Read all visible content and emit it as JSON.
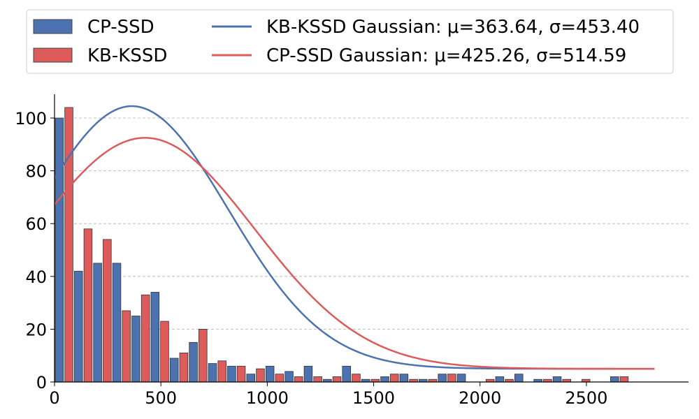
{
  "chart_data": {
    "type": "bar",
    "title": "",
    "xlabel": "",
    "ylabel": "",
    "xlim": [
      0,
      2980
    ],
    "ylim": [
      0,
      109
    ],
    "grid": "y-dashed",
    "legend_position": "top",
    "bin_width": 90,
    "x_ticks": [
      0,
      500,
      1000,
      1500,
      2000,
      2500
    ],
    "y_ticks": [
      0,
      20,
      40,
      60,
      80,
      100
    ],
    "bins": [
      0,
      90,
      180,
      270,
      360,
      450,
      540,
      630,
      720,
      810,
      900,
      990,
      1080,
      1170,
      1260,
      1350,
      1440,
      1530,
      1620,
      1710,
      1800,
      1890,
      1980,
      2070,
      2160,
      2250,
      2340,
      2430,
      2520,
      2610
    ],
    "series": [
      {
        "name": "CP-SSD",
        "color": "#4c72b0",
        "values": [
          100,
          42,
          45,
          45,
          25,
          34,
          9,
          15,
          7,
          6,
          3,
          6,
          4,
          6,
          1,
          6,
          1,
          2,
          3,
          1,
          3,
          3,
          0,
          2,
          3,
          1,
          2,
          0,
          0,
          2
        ]
      },
      {
        "name": "KB-KSSD",
        "color": "#dd5b5b",
        "values": [
          104,
          58,
          54,
          27,
          33,
          23,
          11,
          20,
          8,
          6,
          5,
          3,
          2,
          2,
          2,
          3,
          1,
          3,
          1,
          1,
          3,
          0,
          1,
          1,
          0,
          1,
          1,
          1,
          0,
          2
        ]
      }
    ],
    "curves": [
      {
        "name": "KB-KSSD Gaussian: μ=363.64, σ=453.40",
        "color": "#4c72b0",
        "mu": 363.64,
        "sigma": 453.4,
        "peak": 99.5,
        "baseline": 5,
        "x_start": 0,
        "x_end": 2820
      },
      {
        "name": "CP-SSD Gaussian: μ=425.26, σ=514.59",
        "color": "#dd5b5b",
        "mu": 425.26,
        "sigma": 514.59,
        "peak": 87.5,
        "baseline": 5,
        "x_start": 0,
        "x_end": 2820
      }
    ]
  }
}
